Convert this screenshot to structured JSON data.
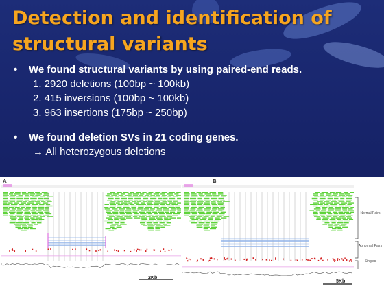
{
  "title": "Detection and identification of structural variants",
  "bullets": [
    {
      "text": "We found structural variants by using paired-end reads.",
      "sub": [
        "1. 2920 deletions (100bp ~ 100kb)",
        "2. 415 inversions (100bp ~ 100kb)",
        "3. 963 insertions (175bp ~ 250bp)"
      ]
    },
    {
      "text": "We found deletion SVs in 21 coding genes.",
      "sub": [
        "→ All heterozygous deletions"
      ]
    }
  ],
  "figure": {
    "panel_a_label": "A",
    "panel_b_label": "B",
    "scale_a": "2Kb",
    "scale_b": "5Kb",
    "labels": {
      "normal": "Normal Pairs",
      "abnormal": "Abnormal Pairs",
      "singles": "Singles"
    },
    "colors": {
      "normal_reads": "#5ed33a",
      "abnormal_link": "#8fb2e8",
      "discordant": "#d42020",
      "marker": "#e070e0"
    }
  }
}
